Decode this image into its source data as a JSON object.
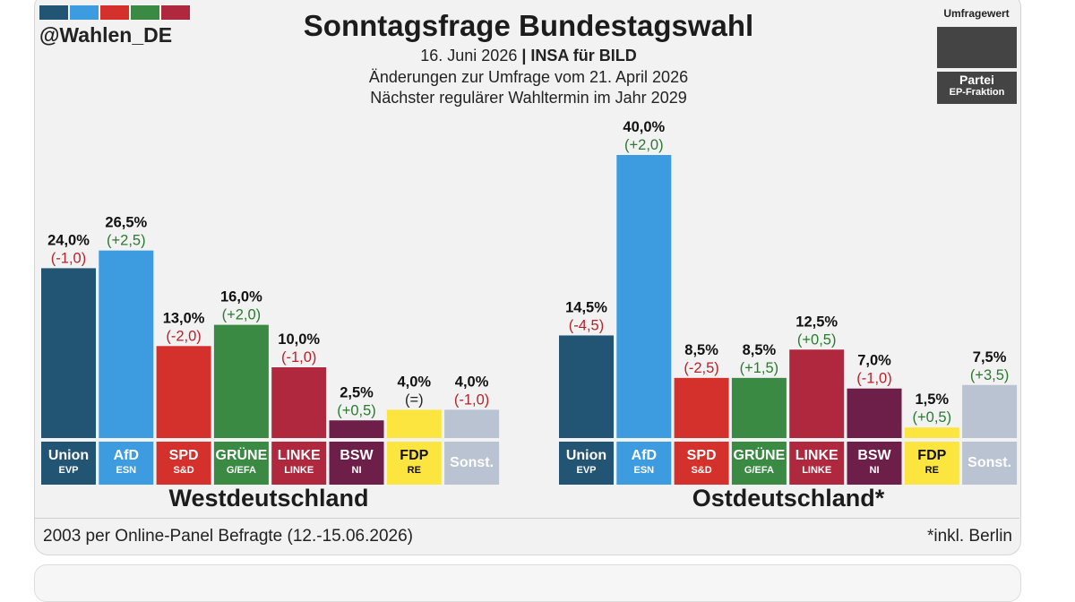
{
  "header": {
    "handle": "@Wahlen_DE",
    "handle_colors": [
      "#225474",
      "#3d9be0",
      "#d4302c",
      "#3a8a44",
      "#b0283e"
    ],
    "title": "Sonntagsfrage Bundestagswahl",
    "date": "16. Juni 2026",
    "separator": "|",
    "institute": "INSA für BILD",
    "changes_note": "Änderungen zur Umfrage vom 21. April 2026",
    "next_election": "Nächster regulärer Wahltermin im Jahr 2029"
  },
  "legend": {
    "title": "Umfragewert",
    "party": "Partei",
    "group": "EP-Fraktion"
  },
  "footer": {
    "respondents": "2003 per Online-Panel Befragte (12.-15.06.2026)",
    "note": "*inkl. Berlin"
  },
  "chart_data": [
    {
      "type": "bar",
      "region": "Westdeutschland",
      "categories": [
        "Union",
        "AfD",
        "SPD",
        "GRÜNE",
        "LINKE",
        "BSW",
        "FDP",
        "Sonst."
      ],
      "groups": [
        "EVP",
        "ESN",
        "S&D",
        "G/EFA",
        "LINKE",
        "NI",
        "RE",
        ""
      ],
      "values": [
        24.0,
        26.5,
        13.0,
        16.0,
        10.0,
        2.5,
        4.0,
        4.0
      ],
      "value_labels": [
        "24,0%",
        "26,5%",
        "13,0%",
        "16,0%",
        "10,0%",
        "2,5%",
        "4,0%",
        "4,0%"
      ],
      "changes": [
        "(-1,0)",
        "(+2,5)",
        "(-2,0)",
        "(+2,0)",
        "(-1,0)",
        "(+0,5)",
        "(=)",
        "(-1,0)"
      ],
      "colors": [
        "#225474",
        "#3d9be0",
        "#d4302c",
        "#3a8a44",
        "#b0283e",
        "#6d1f4a",
        "#fde540",
        "#b9c3d2"
      ]
    },
    {
      "type": "bar",
      "region": "Ostdeutschland*",
      "categories": [
        "Union",
        "AfD",
        "SPD",
        "GRÜNE",
        "LINKE",
        "BSW",
        "FDP",
        "Sonst."
      ],
      "groups": [
        "EVP",
        "ESN",
        "S&D",
        "G/EFA",
        "LINKE",
        "NI",
        "RE",
        ""
      ],
      "values": [
        14.5,
        40.0,
        8.5,
        8.5,
        12.5,
        7.0,
        1.5,
        7.5
      ],
      "value_labels": [
        "14,5%",
        "40,0%",
        "8,5%",
        "8,5%",
        "12,5%",
        "7,0%",
        "1,5%",
        "7,5%"
      ],
      "changes": [
        "(-4,5)",
        "(+2,0)",
        "(-2,5)",
        "(+1,5)",
        "(+0,5)",
        "(-1,0)",
        "(+0,5)",
        "(+3,5)"
      ],
      "colors": [
        "#225474",
        "#3d9be0",
        "#d4302c",
        "#3a8a44",
        "#b0283e",
        "#6d1f4a",
        "#fde540",
        "#b9c3d2"
      ]
    }
  ]
}
